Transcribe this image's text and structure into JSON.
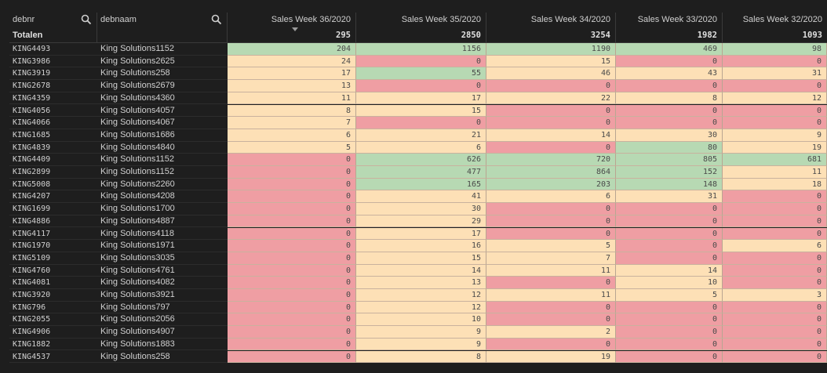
{
  "columns": {
    "debnr": "debnr",
    "debnaam": "debnaam",
    "weeks": [
      "Sales Week 36/2020",
      "Sales Week 35/2020",
      "Sales Week 34/2020",
      "Sales Week 33/2020",
      "Sales Week 32/2020"
    ]
  },
  "totals": {
    "label": "Totalen",
    "values": [
      "295",
      "2850",
      "3254",
      "1982",
      "1093"
    ]
  },
  "colors": {
    "green": "#b7d9b3",
    "yellow": "#fde0b6",
    "red": "#ef9ea3"
  },
  "rows": [
    {
      "debnr": "KING4493",
      "debnaam": "King Solutions1152",
      "values": [
        "204",
        "1156",
        "1190",
        "469",
        "98"
      ],
      "colors": [
        "g",
        "g",
        "g",
        "g",
        "g"
      ]
    },
    {
      "debnr": "KING3986",
      "debnaam": "King Solutions2625",
      "values": [
        "24",
        "0",
        "15",
        "0",
        "0"
      ],
      "colors": [
        "y",
        "r",
        "y",
        "r",
        "r"
      ]
    },
    {
      "debnr": "KING3919",
      "debnaam": "King Solutions258",
      "values": [
        "17",
        "55",
        "46",
        "43",
        "31"
      ],
      "colors": [
        "y",
        "g",
        "y",
        "y",
        "y"
      ]
    },
    {
      "debnr": "KING2678",
      "debnaam": "King Solutions2679",
      "values": [
        "13",
        "0",
        "0",
        "0",
        "0"
      ],
      "colors": [
        "y",
        "r",
        "r",
        "r",
        "r"
      ]
    },
    {
      "debnr": "KING4359",
      "debnaam": "King Solutions4360",
      "values": [
        "11",
        "17",
        "22",
        "8",
        "12"
      ],
      "colors": [
        "y",
        "y",
        "y",
        "y",
        "y"
      ]
    },
    {
      "debnr": "KING4056",
      "debnaam": "King Solutions4057",
      "values": [
        "8",
        "15",
        "0",
        "0",
        "0"
      ],
      "colors": [
        "y",
        "y",
        "r",
        "r",
        "r"
      ]
    },
    {
      "debnr": "KING4066",
      "debnaam": "King Solutions4067",
      "values": [
        "7",
        "0",
        "0",
        "0",
        "0"
      ],
      "colors": [
        "y",
        "r",
        "r",
        "r",
        "r"
      ]
    },
    {
      "debnr": "KING1685",
      "debnaam": "King Solutions1686",
      "values": [
        "6",
        "21",
        "14",
        "30",
        "9"
      ],
      "colors": [
        "y",
        "y",
        "y",
        "y",
        "y"
      ]
    },
    {
      "debnr": "KING4839",
      "debnaam": "King Solutions4840",
      "values": [
        "5",
        "6",
        "0",
        "80",
        "19"
      ],
      "colors": [
        "y",
        "y",
        "r",
        "g",
        "y"
      ]
    },
    {
      "debnr": "KING4409",
      "debnaam": "King Solutions1152",
      "values": [
        "0",
        "626",
        "720",
        "805",
        "681"
      ],
      "colors": [
        "r",
        "g",
        "g",
        "g",
        "g"
      ]
    },
    {
      "debnr": "KING2899",
      "debnaam": "King Solutions1152",
      "values": [
        "0",
        "477",
        "864",
        "152",
        "11"
      ],
      "colors": [
        "r",
        "g",
        "g",
        "g",
        "y"
      ]
    },
    {
      "debnr": "KING5008",
      "debnaam": "King Solutions2260",
      "values": [
        "0",
        "165",
        "203",
        "148",
        "18"
      ],
      "colors": [
        "r",
        "g",
        "g",
        "g",
        "y"
      ]
    },
    {
      "debnr": "KING4207",
      "debnaam": "King Solutions4208",
      "values": [
        "0",
        "41",
        "6",
        "31",
        "0"
      ],
      "colors": [
        "r",
        "y",
        "y",
        "y",
        "r"
      ]
    },
    {
      "debnr": "KING1699",
      "debnaam": "King Solutions1700",
      "values": [
        "0",
        "30",
        "0",
        "0",
        "0"
      ],
      "colors": [
        "r",
        "y",
        "r",
        "r",
        "r"
      ]
    },
    {
      "debnr": "KING4886",
      "debnaam": "King Solutions4887",
      "values": [
        "0",
        "29",
        "0",
        "0",
        "0"
      ],
      "colors": [
        "r",
        "y",
        "r",
        "r",
        "r"
      ]
    },
    {
      "debnr": "KING4117",
      "debnaam": "King Solutions4118",
      "values": [
        "0",
        "17",
        "0",
        "0",
        "0"
      ],
      "colors": [
        "r",
        "y",
        "r",
        "r",
        "r"
      ]
    },
    {
      "debnr": "KING1970",
      "debnaam": "King Solutions1971",
      "values": [
        "0",
        "16",
        "5",
        "0",
        "6"
      ],
      "colors": [
        "r",
        "y",
        "y",
        "r",
        "y"
      ]
    },
    {
      "debnr": "KING5109",
      "debnaam": "King Solutions3035",
      "values": [
        "0",
        "15",
        "7",
        "0",
        "0"
      ],
      "colors": [
        "r",
        "y",
        "y",
        "r",
        "r"
      ]
    },
    {
      "debnr": "KING4760",
      "debnaam": "King Solutions4761",
      "values": [
        "0",
        "14",
        "11",
        "14",
        "0"
      ],
      "colors": [
        "r",
        "y",
        "y",
        "y",
        "r"
      ]
    },
    {
      "debnr": "KING4081",
      "debnaam": "King Solutions4082",
      "values": [
        "0",
        "13",
        "0",
        "10",
        "0"
      ],
      "colors": [
        "r",
        "y",
        "r",
        "y",
        "r"
      ]
    },
    {
      "debnr": "KING3920",
      "debnaam": "King Solutions3921",
      "values": [
        "0",
        "12",
        "11",
        "5",
        "3"
      ],
      "colors": [
        "r",
        "y",
        "y",
        "y",
        "y"
      ]
    },
    {
      "debnr": "KING796",
      "debnaam": "King Solutions797",
      "values": [
        "0",
        "12",
        "0",
        "0",
        "0"
      ],
      "colors": [
        "r",
        "y",
        "r",
        "r",
        "r"
      ]
    },
    {
      "debnr": "KING2055",
      "debnaam": "King Solutions2056",
      "values": [
        "0",
        "10",
        "0",
        "0",
        "0"
      ],
      "colors": [
        "r",
        "y",
        "r",
        "r",
        "r"
      ]
    },
    {
      "debnr": "KING4906",
      "debnaam": "King Solutions4907",
      "values": [
        "0",
        "9",
        "2",
        "0",
        "0"
      ],
      "colors": [
        "r",
        "y",
        "y",
        "r",
        "r"
      ]
    },
    {
      "debnr": "KING1882",
      "debnaam": "King Solutions1883",
      "values": [
        "0",
        "9",
        "0",
        "0",
        "0"
      ],
      "colors": [
        "r",
        "y",
        "r",
        "r",
        "r"
      ]
    },
    {
      "debnr": "KING4537",
      "debnaam": "King Solutions258",
      "values": [
        "0",
        "8",
        "19",
        "0",
        "0"
      ],
      "colors": [
        "r",
        "y",
        "y",
        "r",
        "r"
      ]
    }
  ]
}
